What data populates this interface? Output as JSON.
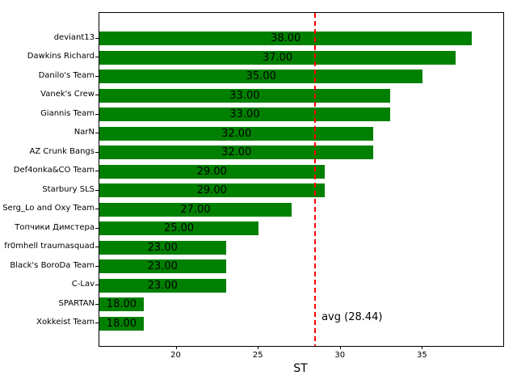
{
  "chart_data": {
    "type": "bar",
    "orientation": "horizontal",
    "title": "",
    "xlabel": "ST",
    "ylabel": "",
    "grid": false,
    "categories": [
      "deviant13",
      "Dawkins Richard",
      "Danilo's Team",
      "Vanek's Crew",
      "Giannis Team",
      "NarN",
      "AZ Crunk Bangs",
      "Def4onka&CO Team",
      "Starbury SLS",
      "Serg_Lo and Oxy Team",
      "Топчики Димстера",
      "fr0mhell traumasquad",
      "Black's BoroDa Team",
      "C-Lav",
      "SPARTAN",
      "Xokkeist Team"
    ],
    "values": [
      38,
      37,
      35,
      33,
      33,
      32,
      32,
      29,
      29,
      27,
      25,
      23,
      23,
      23,
      18,
      18
    ],
    "value_labels": [
      "38.00",
      "37.00",
      "35.00",
      "33.00",
      "33.00",
      "32.00",
      "32.00",
      "29.00",
      "29.00",
      "27.00",
      "25.00",
      "23.00",
      "23.00",
      "23.00",
      "18.00",
      "18.00"
    ],
    "xlim": [
      15.3,
      39.9
    ],
    "xticks": [
      20,
      25,
      30,
      35
    ],
    "xtick_labels": [
      "20",
      "25",
      "30",
      "35"
    ],
    "bar_color": "#008000",
    "bar_label_color": "#000000",
    "avg_line": {
      "value": 28.44,
      "label": "avg (28.44)",
      "color": "#ff0000",
      "style": "dashed"
    }
  }
}
